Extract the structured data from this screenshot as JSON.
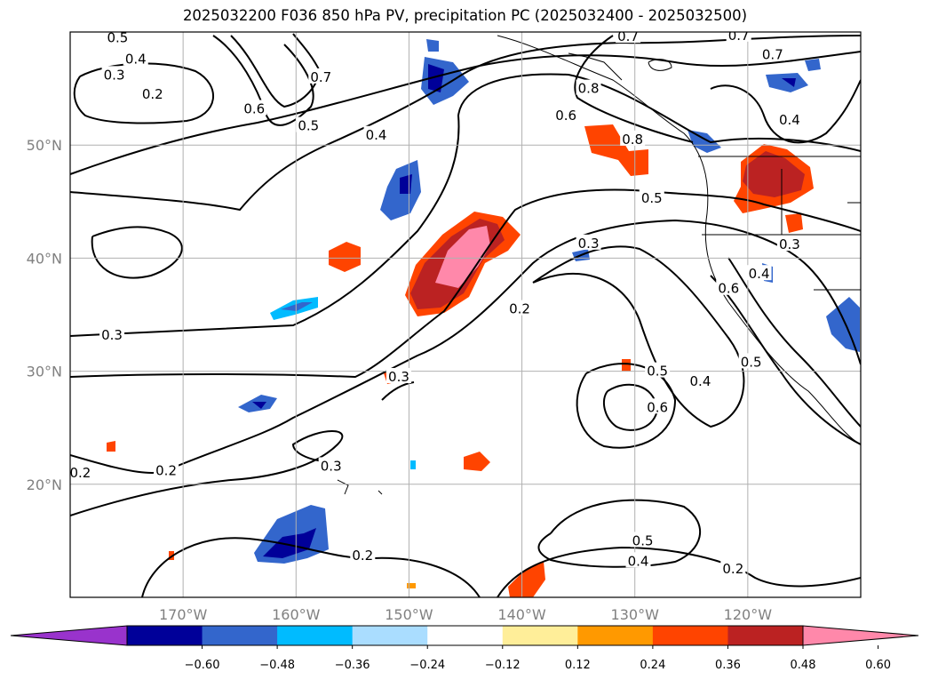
{
  "title": "2025032200 F036 850 hPa PV, precipitation PC (2025032400 - 2025032500)",
  "map": {
    "lon_range": [
      -180,
      -110
    ],
    "lat_range": [
      10,
      60
    ],
    "lon_ticks": [
      {
        "lon": -170,
        "label": "170°W"
      },
      {
        "lon": -160,
        "label": "160°W"
      },
      {
        "lon": -150,
        "label": "150°W"
      },
      {
        "lon": -140,
        "label": "140°W"
      },
      {
        "lon": -130,
        "label": "130°W"
      },
      {
        "lon": -120,
        "label": "120°W"
      }
    ],
    "lat_ticks": [
      {
        "lat": 20,
        "label": "20°N"
      },
      {
        "lat": 30,
        "label": "30°N"
      },
      {
        "lat": 40,
        "label": "40°N"
      },
      {
        "lat": 50,
        "label": "50°N"
      }
    ],
    "gridlines": true,
    "contour_labels": [
      {
        "text": "0.5",
        "lon": -175.8,
        "lat": 59.5
      },
      {
        "text": "0.4",
        "lon": -174.2,
        "lat": 57.6
      },
      {
        "text": "0.3",
        "lon": -176.1,
        "lat": 56.2
      },
      {
        "text": "0.2",
        "lon": -172.7,
        "lat": 54.5
      },
      {
        "text": "0.6",
        "lon": -163.7,
        "lat": 53.2
      },
      {
        "text": "0.7",
        "lon": -157.8,
        "lat": 56.0
      },
      {
        "text": "0.5",
        "lon": -158.9,
        "lat": 51.7
      },
      {
        "text": "0.4",
        "lon": -152.9,
        "lat": 50.9
      },
      {
        "text": "0.8",
        "lon": -134.1,
        "lat": 55.0
      },
      {
        "text": "0.6",
        "lon": -136.1,
        "lat": 52.6
      },
      {
        "text": "0.8",
        "lon": -130.2,
        "lat": 50.5
      },
      {
        "text": "0.7",
        "lon": -130.6,
        "lat": 59.6
      },
      {
        "text": "0.7",
        "lon": -120.8,
        "lat": 59.7
      },
      {
        "text": "0.7",
        "lon": -117.8,
        "lat": 58.0
      },
      {
        "text": "0.4",
        "lon": -116.3,
        "lat": 52.2
      },
      {
        "text": "0.5",
        "lon": -128.5,
        "lat": 45.3
      },
      {
        "text": "0.3",
        "lon": -134.1,
        "lat": 41.3
      },
      {
        "text": "0.3",
        "lon": -116.3,
        "lat": 41.2
      },
      {
        "text": "0.4",
        "lon": -119.0,
        "lat": 38.6
      },
      {
        "text": "0.6",
        "lon": -121.7,
        "lat": 37.3
      },
      {
        "text": "0.2",
        "lon": -140.2,
        "lat": 35.5
      },
      {
        "text": "0.3",
        "lon": -176.3,
        "lat": 33.2
      },
      {
        "text": "0.3",
        "lon": -150.9,
        "lat": 29.5
      },
      {
        "text": "0.5",
        "lon": -128.0,
        "lat": 30.0
      },
      {
        "text": "0.4",
        "lon": -124.2,
        "lat": 29.1
      },
      {
        "text": "0.5",
        "lon": -119.7,
        "lat": 30.8
      },
      {
        "text": "0.6",
        "lon": -128.0,
        "lat": 26.8
      },
      {
        "text": "0.2",
        "lon": -179.1,
        "lat": 21.0
      },
      {
        "text": "0.2",
        "lon": -171.5,
        "lat": 21.2
      },
      {
        "text": "0.3",
        "lon": -156.9,
        "lat": 21.6
      },
      {
        "text": "0.5",
        "lon": -129.3,
        "lat": 15.0
      },
      {
        "text": "0.4",
        "lon": -129.7,
        "lat": 13.2
      },
      {
        "text": "0.2",
        "lon": -154.1,
        "lat": 13.7
      },
      {
        "text": "0.2",
        "lon": -121.3,
        "lat": 12.5
      }
    ]
  },
  "colorbar": {
    "colors": [
      "#9933cc",
      "#000099",
      "#3366cc",
      "#00bbff",
      "#aaddff",
      "#ffffff",
      "#ffee99",
      "#ff9900",
      "#ff4400",
      "#bb2222",
      "#ff88aa"
    ],
    "tick_values": [
      "−0.60",
      "−0.48",
      "−0.36",
      "−0.24",
      "−0.12",
      "0.12",
      "0.24",
      "0.36",
      "0.48",
      "0.60"
    ]
  },
  "precip_color_roles": {
    "neg_light": "#aaddff",
    "neg_mid": "#00bbff",
    "neg_strong": "#3366cc",
    "neg_max": "#000099",
    "pos_light": "#ffee99",
    "pos_mid": "#ff9900",
    "pos_strong": "#ff4400",
    "pos_max": "#bb2222",
    "pos_top": "#ff88aa"
  }
}
